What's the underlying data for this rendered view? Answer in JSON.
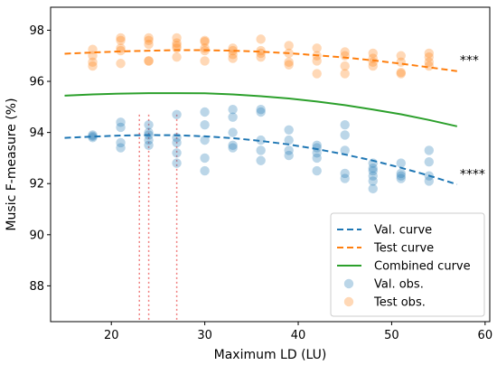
{
  "chart_data": {
    "type": "scatter",
    "title": "",
    "xlabel": "Maximum LD (LU)",
    "ylabel": "Music F-measure (%)",
    "xlim": [
      13.5,
      60.5
    ],
    "ylim": [
      86.6,
      98.9
    ],
    "xticks": [
      20,
      30,
      40,
      50,
      60
    ],
    "yticks": [
      88,
      90,
      92,
      94,
      96,
      98
    ],
    "grid": false,
    "legend_position": "lower-right",
    "colors": {
      "val": "#1f77b4",
      "test": "#ff7f0e",
      "combined": "#2ca02c",
      "vline": "#f08080"
    },
    "vertical_lines_x": [
      23,
      24,
      27
    ],
    "series": [
      {
        "name": "Val. curve",
        "kind": "dashed-line",
        "color": "#1f77b4",
        "x": [
          15,
          18,
          21,
          24,
          27,
          30,
          33,
          36,
          39,
          42,
          45,
          48,
          51,
          54,
          57
        ],
        "y": [
          93.79,
          93.84,
          93.88,
          93.9,
          93.89,
          93.85,
          93.78,
          93.67,
          93.53,
          93.35,
          93.14,
          92.9,
          92.62,
          92.31,
          91.97
        ]
      },
      {
        "name": "Test curve",
        "kind": "dashed-line",
        "color": "#ff7f0e",
        "x": [
          15,
          18,
          21,
          24,
          27,
          30,
          33,
          36,
          39,
          42,
          45,
          48,
          51,
          54,
          57
        ],
        "y": [
          97.08,
          97.13,
          97.17,
          97.2,
          97.22,
          97.22,
          97.2,
          97.16,
          97.1,
          97.02,
          96.93,
          96.82,
          96.69,
          96.55,
          96.4
        ]
      },
      {
        "name": "Combined curve",
        "kind": "line",
        "color": "#2ca02c",
        "x": [
          15,
          18,
          21,
          24,
          27,
          30,
          33,
          36,
          39,
          42,
          45,
          48,
          51,
          54,
          57
        ],
        "y": [
          95.44,
          95.49,
          95.52,
          95.54,
          95.54,
          95.53,
          95.49,
          95.42,
          95.33,
          95.21,
          95.07,
          94.9,
          94.71,
          94.49,
          94.24
        ]
      },
      {
        "name": "Val. obs.",
        "kind": "points",
        "color": "#1f77b4",
        "points": [
          [
            18,
            93.9
          ],
          [
            18,
            93.85
          ],
          [
            18,
            93.8
          ],
          [
            21,
            94.4
          ],
          [
            21,
            94.2
          ],
          [
            21,
            93.6
          ],
          [
            21,
            93.4
          ],
          [
            24,
            94.3
          ],
          [
            24,
            94.0
          ],
          [
            24,
            93.9
          ],
          [
            24,
            93.7
          ],
          [
            24,
            93.5
          ],
          [
            27,
            94.7
          ],
          [
            27,
            93.8
          ],
          [
            27,
            93.6
          ],
          [
            27,
            93.2
          ],
          [
            27,
            92.8
          ],
          [
            30,
            94.8
          ],
          [
            30,
            94.3
          ],
          [
            30,
            93.7
          ],
          [
            30,
            93.0
          ],
          [
            30,
            92.5
          ],
          [
            33,
            94.9
          ],
          [
            33,
            94.6
          ],
          [
            33,
            94.0
          ],
          [
            33,
            93.5
          ],
          [
            33,
            93.4
          ],
          [
            36,
            94.9
          ],
          [
            36,
            94.8
          ],
          [
            36,
            93.7
          ],
          [
            36,
            93.3
          ],
          [
            36,
            92.9
          ],
          [
            39,
            94.1
          ],
          [
            39,
            93.7
          ],
          [
            39,
            93.3
          ],
          [
            39,
            93.1
          ],
          [
            42,
            93.5
          ],
          [
            42,
            93.4
          ],
          [
            42,
            93.2
          ],
          [
            42,
            93.0
          ],
          [
            42,
            92.5
          ],
          [
            45,
            94.3
          ],
          [
            45,
            93.9
          ],
          [
            45,
            93.3
          ],
          [
            45,
            92.4
          ],
          [
            45,
            92.2
          ],
          [
            48,
            92.8
          ],
          [
            48,
            92.6
          ],
          [
            48,
            92.5
          ],
          [
            48,
            92.3
          ],
          [
            48,
            92.1
          ],
          [
            48,
            91.8
          ],
          [
            51,
            92.8
          ],
          [
            51,
            92.4
          ],
          [
            51,
            92.3
          ],
          [
            51,
            92.2
          ],
          [
            54,
            93.3
          ],
          [
            54,
            92.85
          ],
          [
            54,
            92.3
          ],
          [
            54,
            92.1
          ]
        ]
      },
      {
        "name": "Test obs.",
        "kind": "points",
        "color": "#ff7f0e",
        "points": [
          [
            18,
            97.25
          ],
          [
            18,
            97.0
          ],
          [
            18,
            96.75
          ],
          [
            18,
            96.6
          ],
          [
            21,
            97.7
          ],
          [
            21,
            97.6
          ],
          [
            21,
            97.3
          ],
          [
            21,
            97.2
          ],
          [
            21,
            96.7
          ],
          [
            24,
            97.7
          ],
          [
            24,
            97.6
          ],
          [
            24,
            97.45
          ],
          [
            24,
            96.8
          ],
          [
            24,
            96.8
          ],
          [
            27,
            97.7
          ],
          [
            27,
            97.5
          ],
          [
            27,
            97.4
          ],
          [
            27,
            97.3
          ],
          [
            27,
            96.95
          ],
          [
            30,
            97.6
          ],
          [
            30,
            97.55
          ],
          [
            30,
            97.3
          ],
          [
            30,
            97.2
          ],
          [
            30,
            96.8
          ],
          [
            33,
            97.3
          ],
          [
            33,
            97.2
          ],
          [
            33,
            97.05
          ],
          [
            33,
            96.9
          ],
          [
            36,
            97.65
          ],
          [
            36,
            97.2
          ],
          [
            36,
            97.1
          ],
          [
            36,
            96.95
          ],
          [
            39,
            97.4
          ],
          [
            39,
            97.1
          ],
          [
            39,
            96.75
          ],
          [
            39,
            96.65
          ],
          [
            42,
            97.3
          ],
          [
            42,
            97.0
          ],
          [
            42,
            96.8
          ],
          [
            42,
            96.3
          ],
          [
            45,
            97.15
          ],
          [
            45,
            97.0
          ],
          [
            45,
            96.6
          ],
          [
            45,
            96.3
          ],
          [
            48,
            97.1
          ],
          [
            48,
            96.9
          ],
          [
            48,
            96.75
          ],
          [
            48,
            96.6
          ],
          [
            51,
            97.0
          ],
          [
            51,
            96.75
          ],
          [
            51,
            96.35
          ],
          [
            51,
            96.3
          ],
          [
            54,
            97.1
          ],
          [
            54,
            96.95
          ],
          [
            54,
            96.75
          ],
          [
            54,
            96.6
          ]
        ]
      }
    ],
    "annotations": [
      {
        "text": "***",
        "x": 57.3,
        "y": 96.65
      },
      {
        "text": "****",
        "x": 57.3,
        "y": 92.2
      }
    ]
  }
}
